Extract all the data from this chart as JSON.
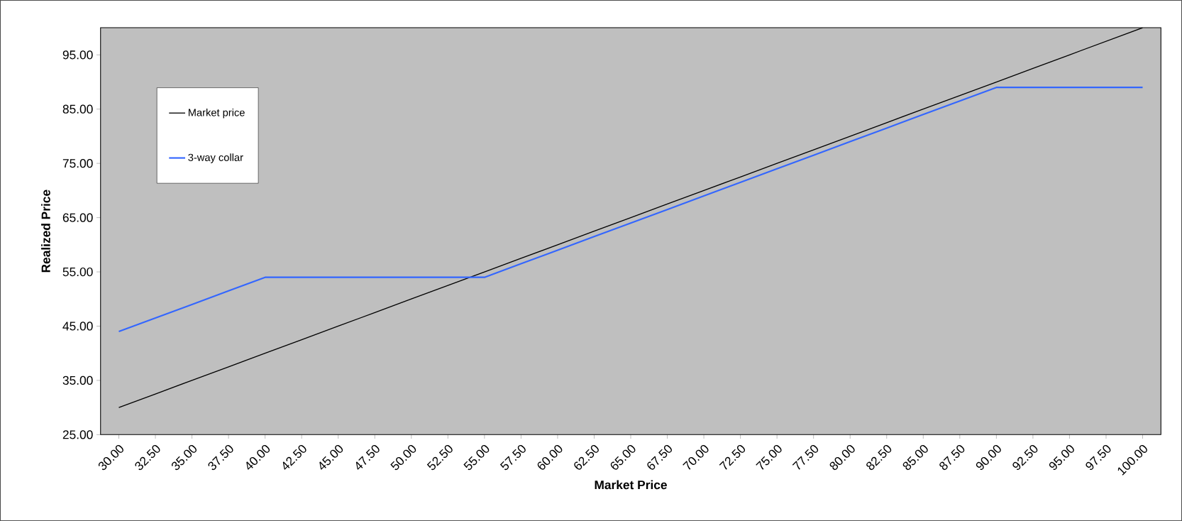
{
  "chart_data": {
    "type": "line",
    "xlabel": "Market Price",
    "ylabel": "Realized Price",
    "categories": [
      "30.00",
      "32.50",
      "35.00",
      "37.50",
      "40.00",
      "42.50",
      "45.00",
      "47.50",
      "50.00",
      "52.50",
      "55.00",
      "57.50",
      "60.00",
      "62.50",
      "65.00",
      "67.50",
      "70.00",
      "72.50",
      "75.00",
      "77.50",
      "80.00",
      "82.50",
      "85.00",
      "87.50",
      "90.00",
      "92.50",
      "95.00",
      "97.50",
      "100.00"
    ],
    "ylim": [
      25,
      100
    ],
    "yticks": [
      {
        "value": 25,
        "label": "25.00"
      },
      {
        "value": 35,
        "label": "35.00"
      },
      {
        "value": 45,
        "label": "45.00"
      },
      {
        "value": 55,
        "label": "55.00"
      },
      {
        "value": 65,
        "label": "65.00"
      },
      {
        "value": 75,
        "label": "75.00"
      },
      {
        "value": 85,
        "label": "85.00"
      },
      {
        "value": 95,
        "label": "95.00"
      }
    ],
    "legend": "top left",
    "grid": false,
    "marker": "none",
    "series": [
      {
        "name": "Market price",
        "color": "#000000",
        "values": [
          30,
          32.5,
          35,
          37.5,
          40,
          42.5,
          45,
          47.5,
          50,
          52.5,
          55,
          57.5,
          60,
          62.5,
          65,
          67.5,
          70,
          72.5,
          75,
          77.5,
          80,
          82.5,
          85,
          87.5,
          90,
          92.5,
          95,
          97.5,
          100
        ]
      },
      {
        "name": "3-way collar",
        "color": "#3366ff",
        "values": [
          44,
          46.5,
          49,
          51.5,
          54,
          54,
          54,
          54,
          54,
          54,
          54,
          56.5,
          59,
          61.5,
          64,
          66.5,
          69,
          71.5,
          74,
          76.5,
          79,
          81.5,
          84,
          86.5,
          89,
          89,
          89,
          89,
          89
        ]
      }
    ]
  }
}
